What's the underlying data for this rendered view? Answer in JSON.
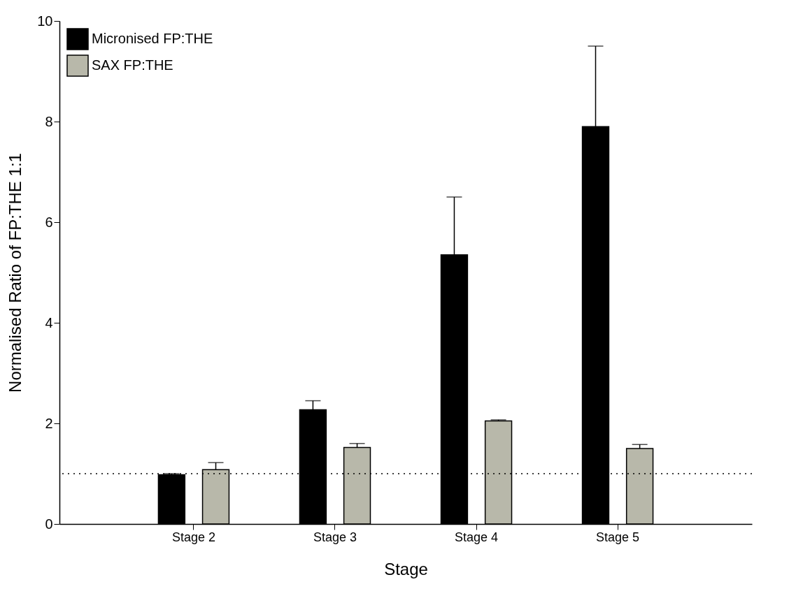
{
  "chart_data": {
    "type": "bar",
    "xlabel": "Stage",
    "ylabel": "Normalised Ratio of FP:THE 1:1",
    "categories": [
      "Stage 2",
      "Stage 3",
      "Stage 4",
      "Stage 5"
    ],
    "series": [
      {
        "name": "Micronised FP:THE",
        "color": "#000000",
        "values": [
          0.98,
          2.27,
          5.35,
          7.9
        ],
        "errors": [
          [
            0.98,
            1.0
          ],
          [
            2.27,
            2.45
          ],
          [
            5.35,
            6.5
          ],
          [
            7.9,
            9.5
          ]
        ]
      },
      {
        "name": "SAX FP:THE",
        "color": "#b8b8aa",
        "values": [
          1.08,
          1.52,
          2.05,
          1.5
        ],
        "errors": [
          [
            1.08,
            1.22
          ],
          [
            1.52,
            1.6
          ],
          [
            2.05,
            2.07
          ],
          [
            1.5,
            1.58
          ]
        ]
      }
    ],
    "ylim": [
      0,
      10
    ],
    "yticks": [
      0,
      2,
      4,
      6,
      8,
      10
    ],
    "ref_lines": [
      {
        "axis": "y",
        "value": 1,
        "line_style": "dotted",
        "color": "#000000"
      }
    ],
    "legend": "top left",
    "grid": false
  }
}
